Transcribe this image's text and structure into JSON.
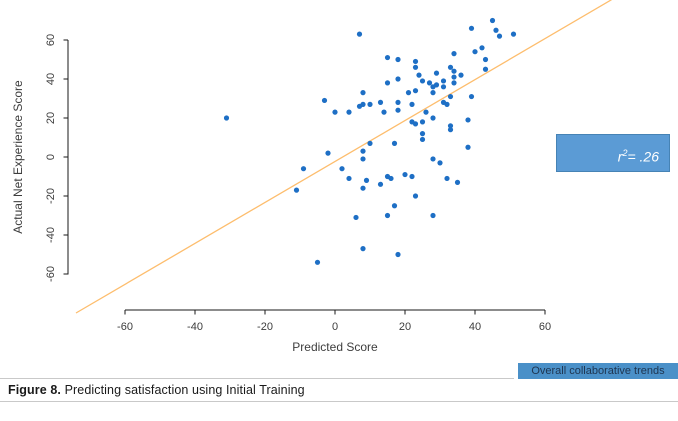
{
  "chart_data": {
    "type": "scatter",
    "title": "",
    "xlabel": "Predicted Score",
    "ylabel": "Actual Net Experience Score",
    "xticks": [
      -60,
      -40,
      -20,
      0,
      20,
      40,
      60
    ],
    "yticks": [
      -60,
      -40,
      -20,
      0,
      20,
      40,
      60
    ],
    "xlim": [
      -75,
      78
    ],
    "ylim": [
      -78,
      80
    ],
    "grid": false,
    "legend_position": "none",
    "point_color": "#1e6fc5",
    "points": [
      [
        7,
        63
      ],
      [
        39,
        66
      ],
      [
        45,
        70
      ],
      [
        46,
        65
      ],
      [
        47,
        62
      ],
      [
        51,
        63
      ],
      [
        40,
        54
      ],
      [
        42,
        56
      ],
      [
        43,
        50
      ],
      [
        43,
        45
      ],
      [
        34,
        53
      ],
      [
        33,
        46
      ],
      [
        34,
        44
      ],
      [
        34,
        41
      ],
      [
        34,
        38
      ],
      [
        36,
        42
      ],
      [
        29,
        43
      ],
      [
        31,
        39
      ],
      [
        15,
        51
      ],
      [
        18,
        50
      ],
      [
        23,
        49
      ],
      [
        23,
        46
      ],
      [
        18,
        40
      ],
      [
        24,
        42
      ],
      [
        25,
        39
      ],
      [
        27,
        38
      ],
      [
        29,
        37
      ],
      [
        31,
        36
      ],
      [
        28,
        36
      ],
      [
        28,
        33
      ],
      [
        33,
        31
      ],
      [
        32,
        27
      ],
      [
        31,
        28
      ],
      [
        39,
        31
      ],
      [
        15,
        38
      ],
      [
        21,
        33
      ],
      [
        23,
        34
      ],
      [
        8,
        33
      ],
      [
        -3,
        29
      ],
      [
        0,
        23
      ],
      [
        4,
        23
      ],
      [
        7,
        26
      ],
      [
        8,
        27
      ],
      [
        10,
        27
      ],
      [
        13,
        28
      ],
      [
        14,
        23
      ],
      [
        18,
        24
      ],
      [
        18,
        28
      ],
      [
        22,
        27
      ],
      [
        26,
        23
      ],
      [
        22,
        18
      ],
      [
        23,
        17
      ],
      [
        25,
        18
      ],
      [
        28,
        20
      ],
      [
        33,
        16
      ],
      [
        33,
        14
      ],
      [
        38,
        19
      ],
      [
        25,
        12
      ],
      [
        25,
        9
      ],
      [
        17,
        7
      ],
      [
        10,
        7
      ],
      [
        8,
        3
      ],
      [
        38,
        5
      ],
      [
        8,
        -1
      ],
      [
        -31,
        20
      ],
      [
        -2,
        2
      ],
      [
        -9,
        -6
      ],
      [
        -11,
        -17
      ],
      [
        2,
        -6
      ],
      [
        4,
        -11
      ],
      [
        9,
        -12
      ],
      [
        8,
        -16
      ],
      [
        13,
        -14
      ],
      [
        15,
        -10
      ],
      [
        16,
        -11
      ],
      [
        20,
        -9
      ],
      [
        22,
        -10
      ],
      [
        23,
        -20
      ],
      [
        28,
        -1
      ],
      [
        30,
        -3
      ],
      [
        32,
        -11
      ],
      [
        35,
        -13
      ],
      [
        17,
        -25
      ],
      [
        28,
        -30
      ],
      [
        15,
        -30
      ],
      [
        6,
        -31
      ],
      [
        8,
        -47
      ],
      [
        18,
        -50
      ],
      [
        -5,
        -54
      ]
    ],
    "trend_line": {
      "slope": 1.05,
      "intercept": -2.3,
      "x_start": -74,
      "x_end": 79,
      "color": "#fdbd6d"
    }
  },
  "annotation": {
    "variable": "r",
    "exponent": "2",
    "value": "= .26",
    "bg": "#5b9bd5",
    "border": "#4683b5",
    "text_color": "#ffffff"
  },
  "legend_tag": {
    "label": "Overall collaborative trends",
    "bg": "#4a90c8",
    "text_color": "#1f3550"
  },
  "caption": {
    "prefix": "Figure 8.",
    "text": " Predicting satisfaction using Initial Training"
  }
}
